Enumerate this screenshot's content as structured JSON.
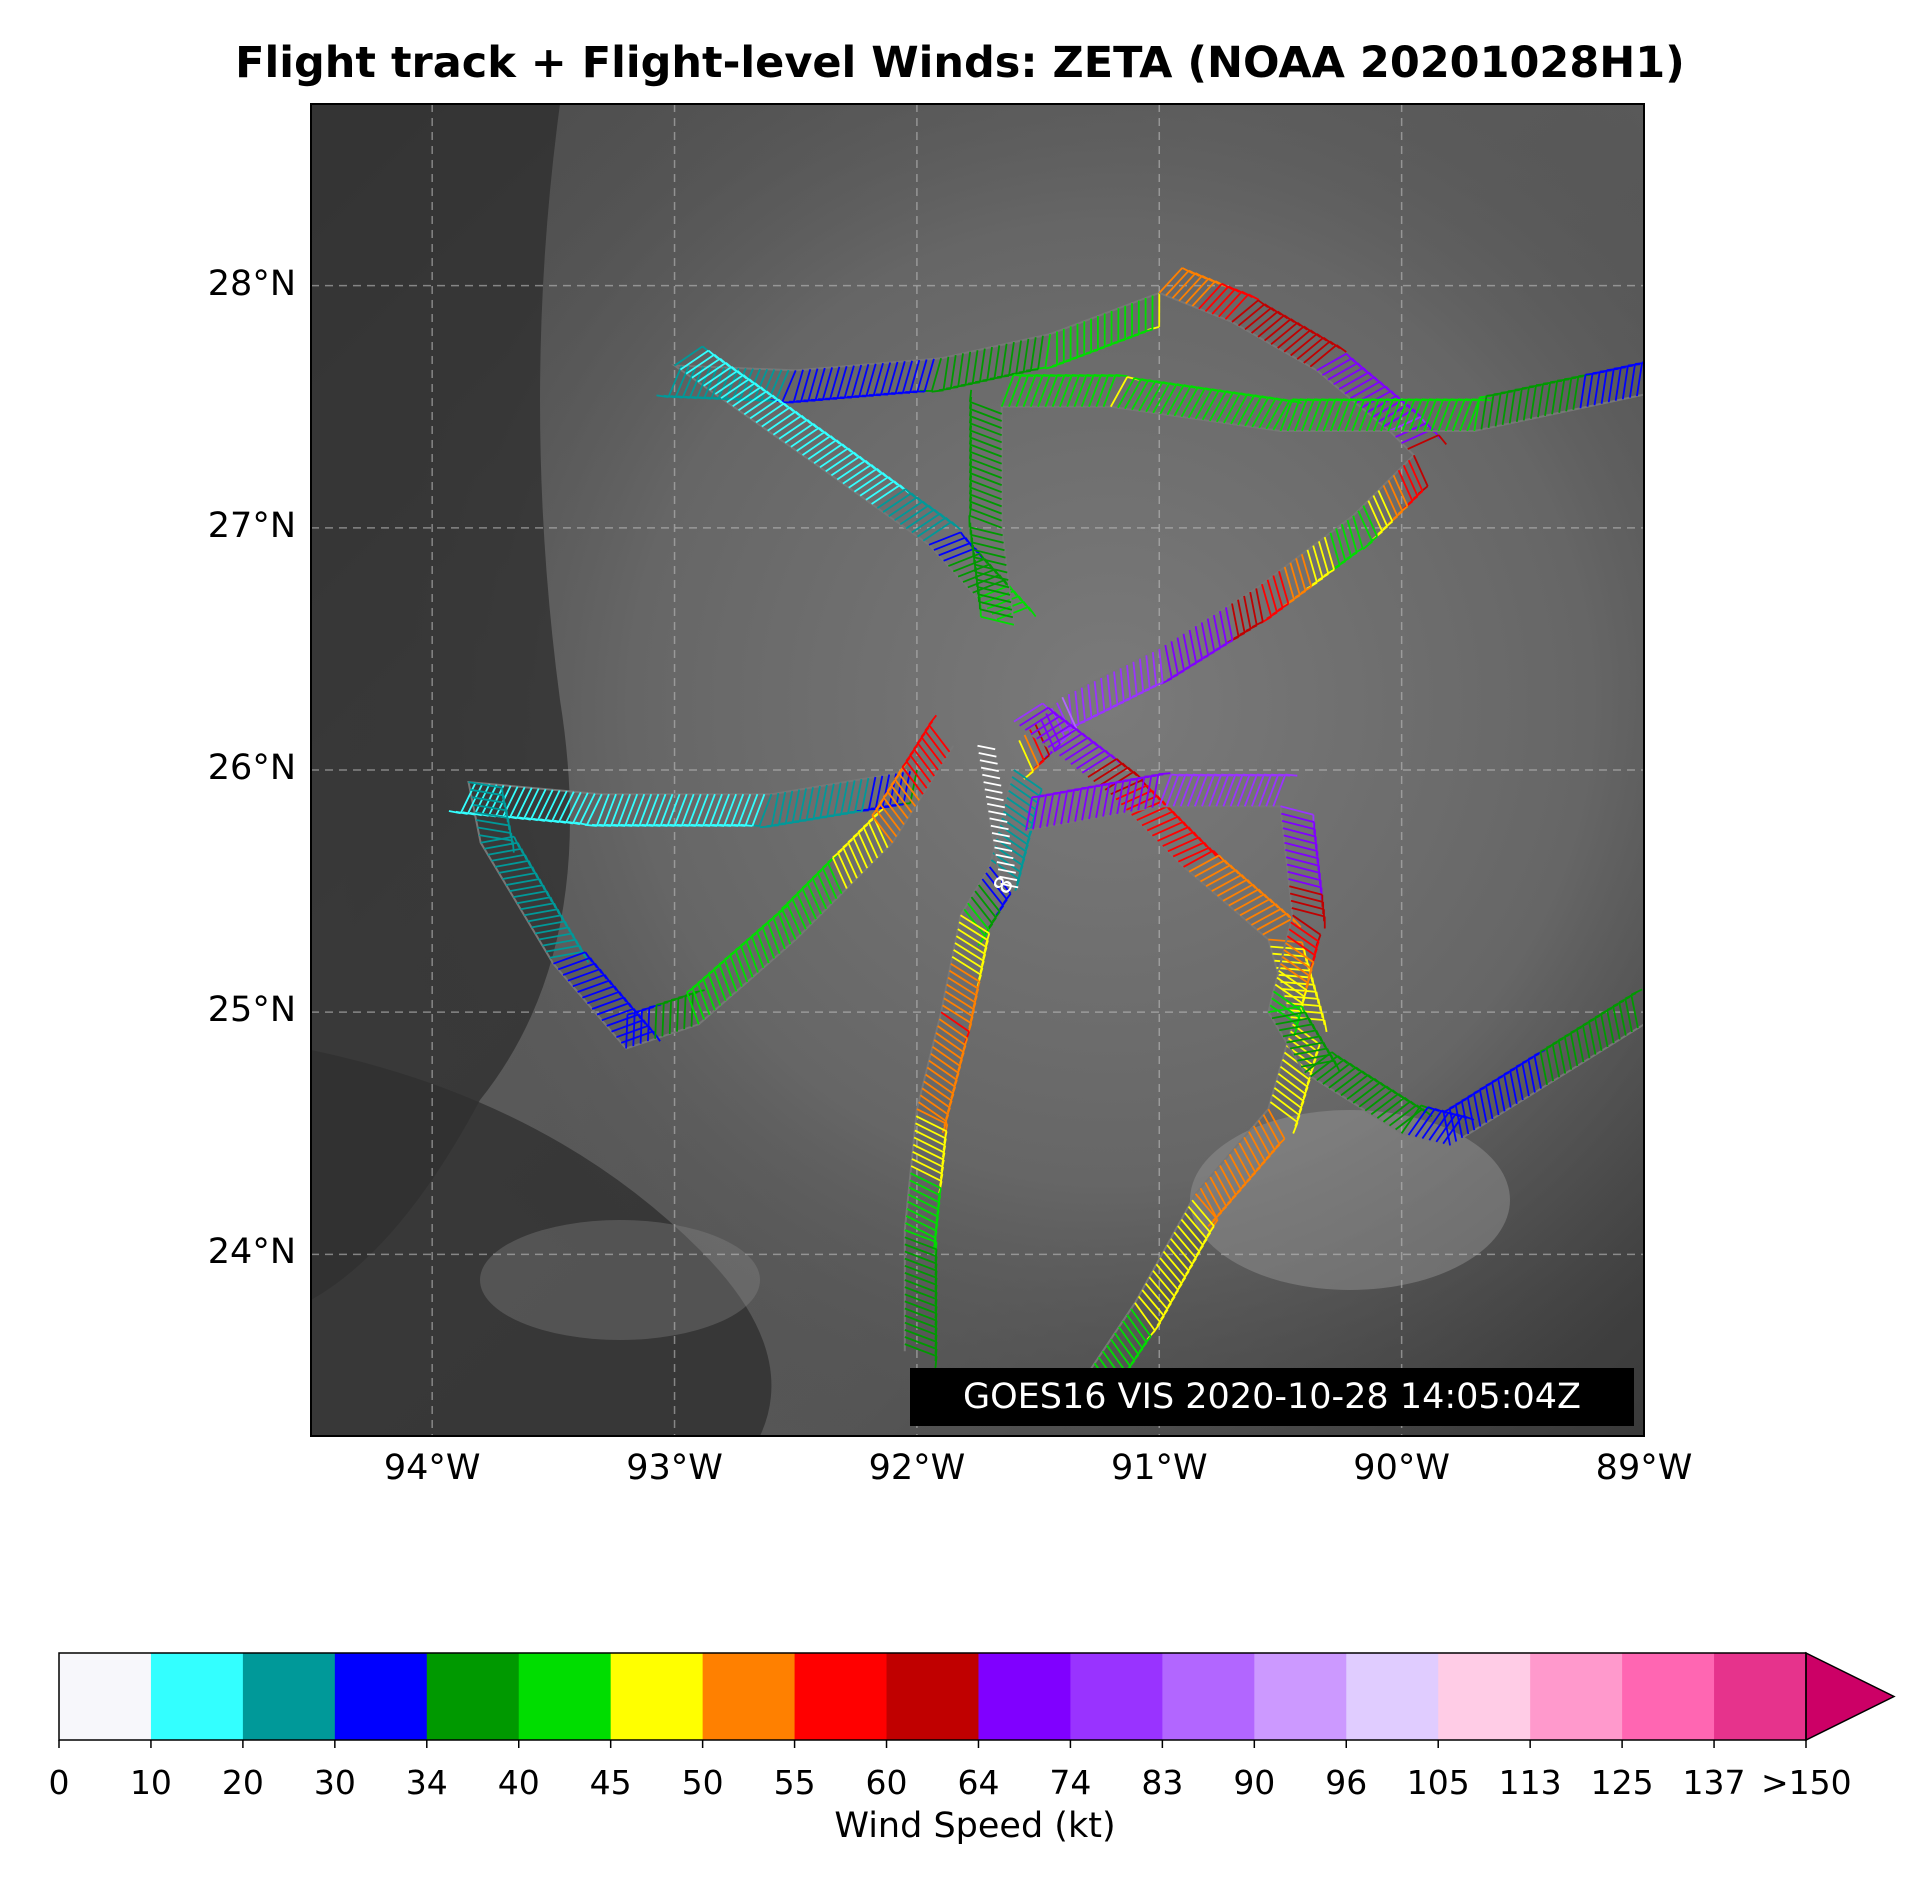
{
  "title": "Flight track + Flight-level Winds: ZETA (NOAA 20201028H1)",
  "stamp": "GOES16 VIS 2020-10-28 14:05:04Z",
  "map": {
    "lon_range": [
      -94.5,
      -89.0
    ],
    "lat_range": [
      23.25,
      28.75
    ],
    "grid": true,
    "lat_ticks": [
      {
        "value": 24,
        "label": "24°N"
      },
      {
        "value": 25,
        "label": "25°N"
      },
      {
        "value": 26,
        "label": "26°N"
      },
      {
        "value": 27,
        "label": "27°N"
      },
      {
        "value": 28,
        "label": "28°N"
      }
    ],
    "lon_ticks": [
      {
        "value": -94,
        "label": "94°W"
      },
      {
        "value": -93,
        "label": "93°W"
      },
      {
        "value": -92,
        "label": "92°W"
      },
      {
        "value": -91,
        "label": "91°W"
      },
      {
        "value": -90,
        "label": "90°W"
      },
      {
        "value": -89,
        "label": "89°W"
      }
    ],
    "flight_track_segments": [
      {
        "name": "north-loop-west",
        "points": [
          [
            -91.0,
            27.97
          ],
          [
            -91.45,
            27.8
          ],
          [
            -91.9,
            27.7
          ],
          [
            -92.5,
            27.65
          ],
          [
            -93.0,
            27.67
          ],
          [
            -92.4,
            27.25
          ],
          [
            -91.95,
            26.93
          ],
          [
            -91.65,
            26.6
          ]
        ],
        "speeds": [
          45,
          40,
          34,
          30,
          20,
          10,
          30,
          45
        ]
      },
      {
        "name": "north-loop-east",
        "points": [
          [
            -91.0,
            27.97
          ],
          [
            -90.7,
            27.85
          ],
          [
            -90.35,
            27.65
          ],
          [
            -90.05,
            27.4
          ],
          [
            -89.95,
            27.3
          ],
          [
            -90.2,
            27.05
          ],
          [
            -90.6,
            26.75
          ],
          [
            -91.0,
            26.5
          ],
          [
            -91.4,
            26.3
          ],
          [
            -91.6,
            26.1
          ]
        ],
        "speeds": [
          50,
          60,
          64,
          74,
          60,
          40,
          60,
          74,
          83,
          45
        ]
      },
      {
        "name": "north-leg",
        "points": [
          [
            -91.6,
            26.6
          ],
          [
            -91.65,
            27.0
          ],
          [
            -91.65,
            27.5
          ],
          [
            -91.2,
            27.5
          ],
          [
            -90.5,
            27.4
          ],
          [
            -89.7,
            27.4
          ],
          [
            -89.0,
            27.55
          ]
        ],
        "speeds": [
          40,
          34,
          40,
          45,
          40,
          40,
          30
        ]
      },
      {
        "name": "west-box",
        "points": [
          [
            -92.0,
            26.0
          ],
          [
            -92.6,
            25.9
          ],
          [
            -93.3,
            25.9
          ],
          [
            -93.85,
            25.95
          ],
          [
            -93.8,
            25.7
          ],
          [
            -93.5,
            25.2
          ],
          [
            -93.2,
            24.85
          ],
          [
            -92.9,
            24.95
          ],
          [
            -92.5,
            25.3
          ],
          [
            -92.1,
            25.7
          ],
          [
            -91.85,
            26.1
          ]
        ],
        "speeds": [
          34,
          20,
          10,
          20,
          20,
          30,
          30,
          40,
          40,
          50,
          60
        ]
      },
      {
        "name": "south-leg",
        "points": [
          [
            -91.6,
            26.0
          ],
          [
            -91.7,
            25.6
          ],
          [
            -91.82,
            25.4
          ],
          [
            -91.9,
            25.0
          ],
          [
            -92.0,
            24.6
          ],
          [
            -92.05,
            24.1
          ],
          [
            -92.05,
            23.6
          ]
        ],
        "speeds": [
          20,
          30,
          45,
          55,
          50,
          40,
          34
        ]
      },
      {
        "name": "southeast-leg",
        "points": [
          [
            -91.6,
            26.2
          ],
          [
            -91.2,
            25.9
          ],
          [
            -90.9,
            25.6
          ],
          [
            -90.55,
            25.3
          ],
          [
            -90.45,
            24.95
          ],
          [
            -90.55,
            24.6
          ],
          [
            -90.85,
            24.25
          ],
          [
            -91.1,
            23.8
          ],
          [
            -91.3,
            23.5
          ]
        ],
        "speeds": [
          74,
          60,
          55,
          50,
          45,
          50,
          50,
          45,
          40
        ]
      },
      {
        "name": "east-box",
        "points": [
          [
            -91.55,
            25.75
          ],
          [
            -91.0,
            25.85
          ],
          [
            -90.5,
            25.85
          ],
          [
            -90.45,
            25.4
          ],
          [
            -90.55,
            25.0
          ],
          [
            -90.4,
            24.75
          ],
          [
            -90.0,
            24.5
          ],
          [
            -89.8,
            24.45
          ],
          [
            -89.4,
            24.7
          ],
          [
            -89.0,
            24.95
          ]
        ],
        "speeds": [
          64,
          74,
          74,
          60,
          40,
          34,
          34,
          30,
          34,
          40
        ]
      },
      {
        "name": "center-low",
        "points": [
          [
            -91.75,
            26.1
          ],
          [
            -91.7,
            25.8
          ],
          [
            -91.65,
            25.5
          ]
        ],
        "speeds": [
          5,
          5,
          5
        ]
      }
    ],
    "center_marker_label": "8"
  },
  "colorbar": {
    "label": "Wind Speed (kt)",
    "boundaries": [
      "0",
      "10",
      "20",
      "30",
      "34",
      "40",
      "45",
      "50",
      "55",
      "60",
      "64",
      "74",
      "83",
      "90",
      "96",
      "105",
      "113",
      "125",
      "137",
      ">150"
    ],
    "colors": [
      "#f7f7fb",
      "#33ffff",
      "#009999",
      "#0000ff",
      "#009900",
      "#00dd00",
      "#ffff00",
      "#ff8000",
      "#ff0000",
      "#c00000",
      "#8000ff",
      "#9933ff",
      "#b266ff",
      "#cc99ff",
      "#e0ccff",
      "#ffcce6",
      "#ff99cc",
      "#ff66b2",
      "#e6338c",
      "#cc0066"
    ],
    "extend": "max"
  }
}
